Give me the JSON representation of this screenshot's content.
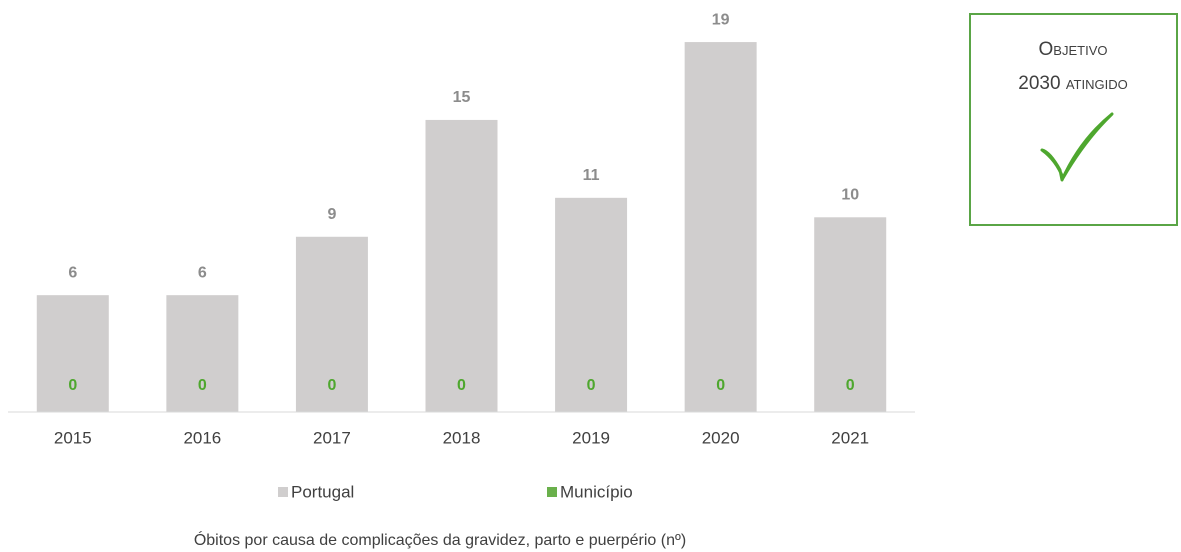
{
  "chart_data": {
    "type": "bar",
    "caption": "Óbitos por causa de complicações da gravidez, parto e puerpério (nº)",
    "annotation": [
      "Objetivo",
      "2030 atingido"
    ],
    "categories": [
      "2015",
      "2016",
      "2017",
      "2018",
      "2019",
      "2020",
      "2021"
    ],
    "series": [
      {
        "name": "Portugal",
        "color": "#d0cece",
        "label_color": "#8c8c8c",
        "values": [
          6,
          6,
          9,
          15,
          11,
          19,
          10
        ]
      },
      {
        "name": "Município",
        "color": "#6ab04c",
        "label_color": "#4ea72e",
        "values": [
          0,
          0,
          0,
          0,
          0,
          0,
          0
        ]
      }
    ],
    "ylim": [
      0,
      20
    ]
  }
}
